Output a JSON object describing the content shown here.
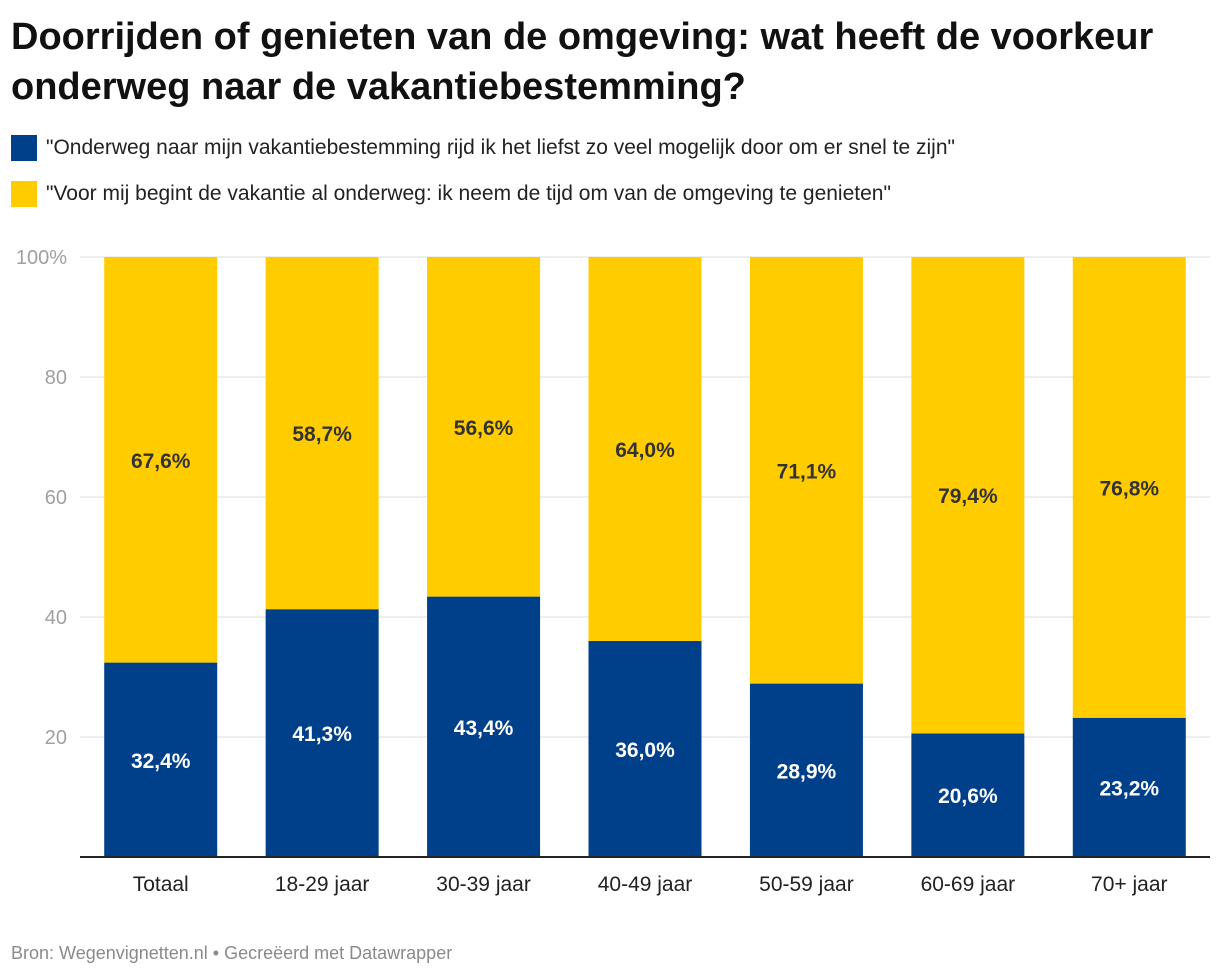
{
  "title": "Doorrijden of genieten van de omgeving: wat heeft de voorkeur onderweg naar de vakantiebestemming?",
  "legend": [
    {
      "label": "\"Onderweg naar mijn vakantiebestemming rijd ik het liefst zo veel mogelijk door om er snel te zijn\"",
      "color": "#003f8a"
    },
    {
      "label": "\"Voor mij begint de vakantie al onderweg: ik neem de tijd om van de omgeving te genieten\"",
      "color": "#ffcc00"
    }
  ],
  "footer": "Bron: Wegenvignetten.nl • Gecreëerd met Datawrapper",
  "chart_data": {
    "type": "bar",
    "stacked": true,
    "title": "Doorrijden of genieten van de omgeving: wat heeft de voorkeur onderweg naar de vakantiebestemming?",
    "categories": [
      "Totaal",
      "18-29 jaar",
      "30-39 jaar",
      "40-49 jaar",
      "50-59 jaar",
      "60-69 jaar",
      "70+ jaar"
    ],
    "series": [
      {
        "name": "\"Onderweg naar mijn vakantiebestemming rijd ik het liefst zo veel mogelijk door om er snel te zijn\"",
        "color": "#003f8a",
        "values": [
          32.4,
          41.3,
          43.4,
          36.0,
          28.9,
          20.6,
          23.2
        ],
        "labels": [
          "32,4%",
          "41,3%",
          "43,4%",
          "36,0%",
          "28,9%",
          "20,6%",
          "23,2%"
        ]
      },
      {
        "name": "\"Voor mij begint de vakantie al onderweg: ik neem de tijd om van de omgeving te genieten\"",
        "color": "#ffcc00",
        "values": [
          67.6,
          58.7,
          56.6,
          64.0,
          71.1,
          79.4,
          76.8
        ],
        "labels": [
          "67,6%",
          "58,7%",
          "56,6%",
          "64,0%",
          "71,1%",
          "79,4%",
          "76,8%"
        ]
      }
    ],
    "yticks": [
      20,
      40,
      60,
      80,
      100
    ],
    "ytick_labels": [
      "20",
      "40",
      "60",
      "80",
      "100%"
    ],
    "ylim": [
      0,
      100
    ],
    "xlabel": "",
    "ylabel": "",
    "grid": true
  }
}
